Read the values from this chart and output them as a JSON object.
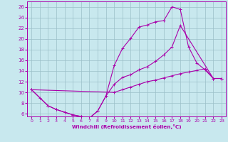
{
  "xlabel": "Windchill (Refroidissement éolien,°C)",
  "bg_color": "#c8e8ee",
  "grid_color": "#9bbfc8",
  "line_color": "#aa00aa",
  "xlim": [
    -0.5,
    23.5
  ],
  "ylim": [
    5.5,
    27.0
  ],
  "yticks": [
    6,
    8,
    10,
    12,
    14,
    16,
    18,
    20,
    22,
    24,
    26
  ],
  "xticks": [
    0,
    1,
    2,
    3,
    4,
    5,
    6,
    7,
    8,
    9,
    10,
    11,
    12,
    13,
    14,
    15,
    16,
    17,
    18,
    19,
    20,
    21,
    22,
    23
  ],
  "curve1": {
    "x": [
      0,
      1,
      2,
      3,
      4,
      5,
      6,
      7,
      8,
      9,
      10,
      11,
      12,
      13,
      14,
      15,
      16,
      17,
      18,
      19,
      20,
      21,
      22
    ],
    "y": [
      10.5,
      9.0,
      7.5,
      6.8,
      6.3,
      5.8,
      5.5,
      5.2,
      6.5,
      9.3,
      15.0,
      18.2,
      20.1,
      22.2,
      22.6,
      23.2,
      23.4,
      26.0,
      25.5,
      18.5,
      15.5,
      14.2,
      12.6
    ]
  },
  "curve2": {
    "x": [
      0,
      2,
      3,
      4,
      5,
      6,
      7,
      8,
      9,
      10,
      11,
      12,
      13,
      14,
      15,
      16,
      17,
      18,
      22,
      23
    ],
    "y": [
      10.5,
      7.5,
      6.8,
      6.3,
      5.8,
      5.5,
      5.2,
      6.5,
      9.3,
      11.5,
      12.8,
      13.3,
      14.2,
      14.8,
      15.8,
      17.0,
      18.5,
      22.5,
      12.6,
      12.6
    ]
  },
  "curve3": {
    "x": [
      0,
      10,
      11,
      12,
      13,
      14,
      15,
      16,
      17,
      18,
      19,
      20,
      21,
      22,
      23
    ],
    "y": [
      10.5,
      10.0,
      10.5,
      11.0,
      11.5,
      12.0,
      12.3,
      12.7,
      13.1,
      13.5,
      13.8,
      14.1,
      14.4,
      12.6,
      12.6
    ]
  }
}
